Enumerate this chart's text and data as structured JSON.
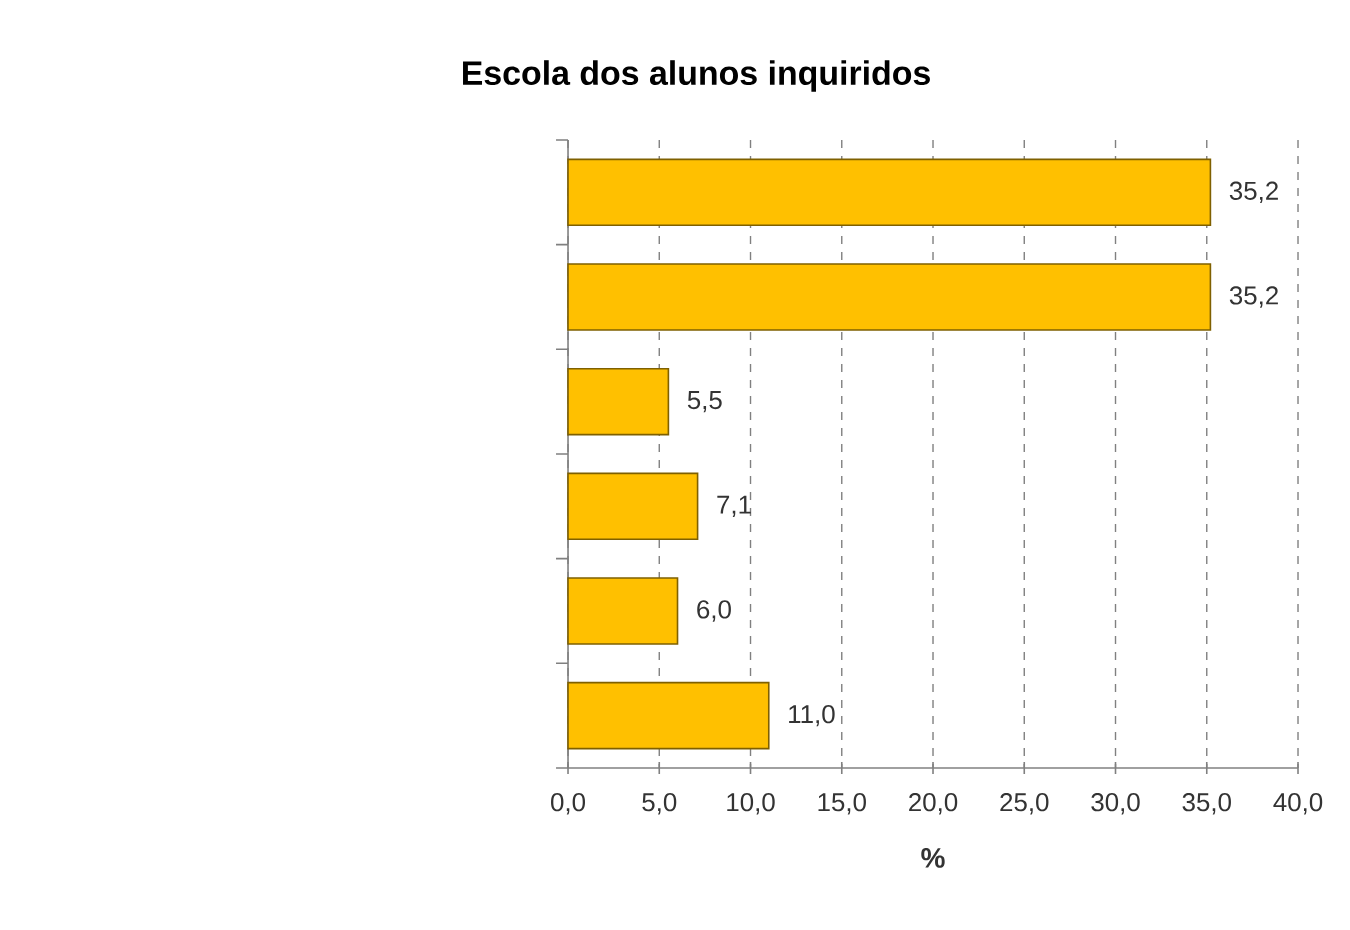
{
  "chart_data": {
    "type": "bar",
    "orientation": "horizontal",
    "title": "Escola dos alunos inquiridos",
    "xlabel": "%",
    "categories": [
      null,
      null,
      null,
      null,
      null,
      null
    ],
    "values": [
      35.2,
      35.2,
      5.5,
      7.1,
      6.0,
      11.0
    ],
    "value_labels": [
      "35,2",
      "35,2",
      "5,5",
      "7,1",
      "6,0",
      "11,0"
    ],
    "color": "#ffc000",
    "xlim": [
      0,
      40
    ],
    "xticks": [
      {
        "value": 0,
        "label": "0,0"
      },
      {
        "value": 5,
        "label": "5,0"
      },
      {
        "value": 10,
        "label": "10,0"
      },
      {
        "value": 15,
        "label": "15,0"
      },
      {
        "value": 20,
        "label": "20,0"
      },
      {
        "value": 25,
        "label": "25,0"
      },
      {
        "value": 30,
        "label": "30,0"
      },
      {
        "value": 35,
        "label": "35,0"
      },
      {
        "value": 40,
        "label": "40,0"
      }
    ],
    "grid": "x"
  }
}
